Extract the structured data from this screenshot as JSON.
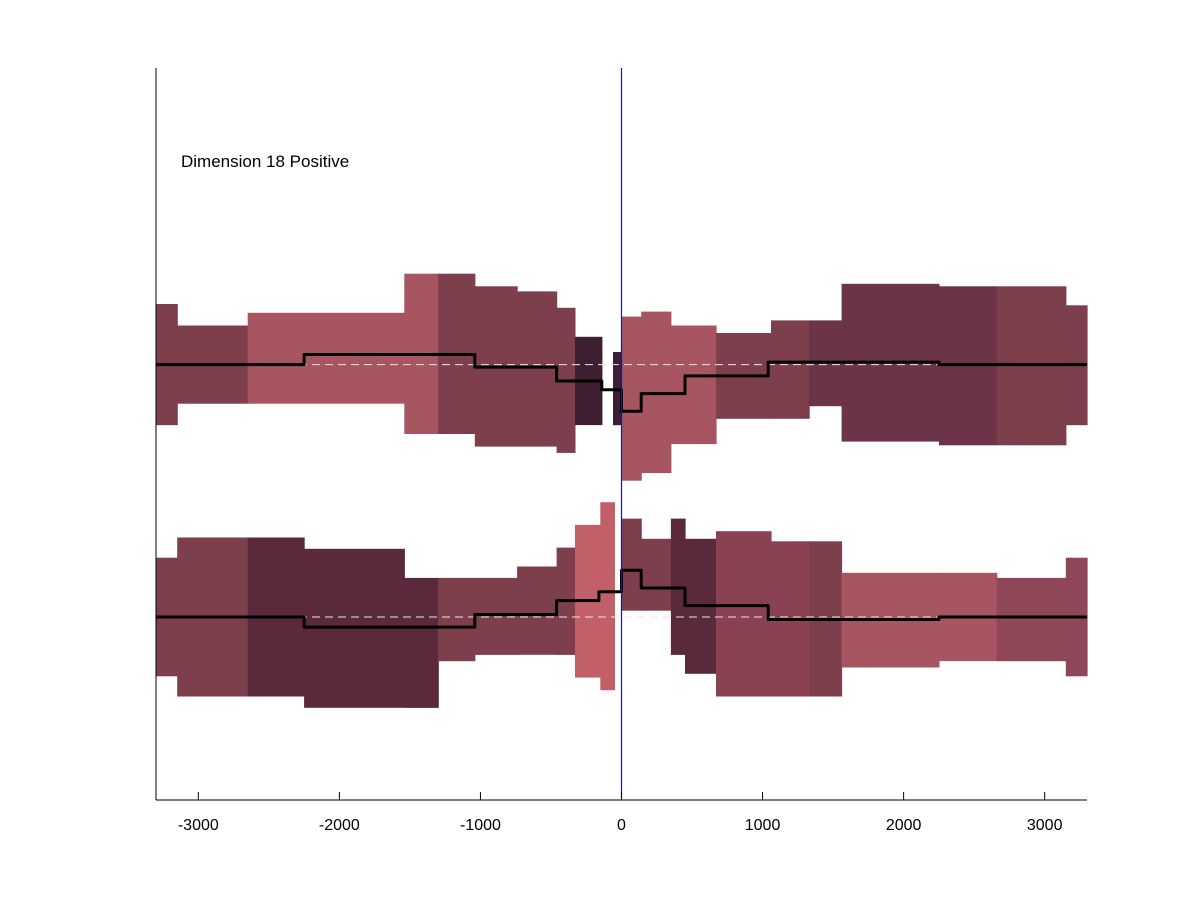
{
  "chart_data": {
    "type": "area",
    "title": "",
    "xlabel": "",
    "ylabel": "",
    "annotation": "Dimension 18 Positive",
    "xlim": [
      -3300,
      3300
    ],
    "ylim": [
      -3.45,
      2.35
    ],
    "xticks": [
      -3000,
      -2000,
      -1000,
      0,
      1000,
      2000,
      3000
    ],
    "x_ticks_shown": true,
    "y_ticks_shown": false,
    "grid": false,
    "vertical_marker": {
      "x": 0,
      "color": "#1a1a8c"
    },
    "track_baselines": [
      0,
      -2
    ],
    "baseline_style": {
      "color": "#e8e8e8",
      "dash": "dashed"
    },
    "tracks": [
      {
        "segments": [
          {
            "x0": -3300,
            "x1": -3150,
            "lo": -0.48,
            "hi": 0.48,
            "color": "#7e3f4d"
          },
          {
            "x0": -3150,
            "x1": -2650,
            "lo": -0.31,
            "hi": 0.31,
            "color": "#7e3f4d"
          },
          {
            "x0": -2650,
            "x1": -1540,
            "lo": -0.31,
            "hi": 0.41,
            "color": "#a75560"
          },
          {
            "x0": -1540,
            "x1": -1300,
            "lo": -0.55,
            "hi": 0.72,
            "color": "#a75560"
          },
          {
            "x0": -1300,
            "x1": -1040,
            "lo": -0.55,
            "hi": 0.72,
            "color": "#7e3f4d"
          },
          {
            "x0": -1040,
            "x1": -740,
            "lo": -0.65,
            "hi": 0.62,
            "color": "#7e3f4d"
          },
          {
            "x0": -740,
            "x1": -460,
            "lo": -0.65,
            "hi": 0.58,
            "color": "#7e3f4d"
          },
          {
            "x0": -460,
            "x1": -330,
            "lo": -0.7,
            "hi": 0.45,
            "color": "#7e3f4d"
          },
          {
            "x0": -330,
            "x1": -140,
            "lo": -0.48,
            "hi": 0.22,
            "color": "#3e1f31"
          },
          {
            "x0": -60,
            "x1": 0,
            "lo": -0.48,
            "hi": 0.1,
            "color": "#3e1f31"
          },
          {
            "x0": 0,
            "x1": 140,
            "lo": -0.92,
            "hi": 0.38,
            "color": "#a75560"
          },
          {
            "x0": 140,
            "x1": 350,
            "lo": -0.86,
            "hi": 0.42,
            "color": "#a75560"
          },
          {
            "x0": 350,
            "x1": 670,
            "lo": -0.63,
            "hi": 0.31,
            "color": "#a75560"
          },
          {
            "x0": 670,
            "x1": 1060,
            "lo": -0.43,
            "hi": 0.25,
            "color": "#7e3f4d"
          },
          {
            "x0": 1060,
            "x1": 1330,
            "lo": -0.43,
            "hi": 0.35,
            "color": "#7e3f4d"
          },
          {
            "x0": 1330,
            "x1": 1560,
            "lo": -0.33,
            "hi": 0.35,
            "color": "#6b3448"
          },
          {
            "x0": 1560,
            "x1": 2250,
            "lo": -0.61,
            "hi": 0.64,
            "color": "#6b3448"
          },
          {
            "x0": 2250,
            "x1": 2660,
            "lo": -0.64,
            "hi": 0.62,
            "color": "#6b3448"
          },
          {
            "x0": 2660,
            "x1": 3150,
            "lo": -0.64,
            "hi": 0.62,
            "color": "#7e3f4d"
          },
          {
            "x0": 3150,
            "x1": 3300,
            "lo": -0.48,
            "hi": 0.47,
            "color": "#7e3f4d"
          }
        ],
        "mean_line": [
          [
            -3300,
            0
          ],
          [
            -2250,
            0
          ],
          [
            -2250,
            0.08
          ],
          [
            -1040,
            0.08
          ],
          [
            -1040,
            -0.02
          ],
          [
            -460,
            -0.02
          ],
          [
            -460,
            -0.13
          ],
          [
            -140,
            -0.13
          ],
          [
            -140,
            -0.2
          ],
          [
            0,
            -0.2
          ],
          [
            0,
            -0.37
          ],
          [
            140,
            -0.37
          ],
          [
            140,
            -0.23
          ],
          [
            450,
            -0.23
          ],
          [
            450,
            -0.09
          ],
          [
            1040,
            -0.09
          ],
          [
            1040,
            0.02
          ],
          [
            2250,
            0.02
          ],
          [
            2250,
            0
          ],
          [
            3300,
            0
          ]
        ]
      },
      {
        "segments": [
          {
            "x0": -3300,
            "x1": -3150,
            "lo": -2.47,
            "hi": -1.53,
            "color": "#7e3f4d"
          },
          {
            "x0": -3150,
            "x1": -2650,
            "lo": -2.63,
            "hi": -1.37,
            "color": "#7e3f4d"
          },
          {
            "x0": -2650,
            "x1": -2250,
            "lo": -2.63,
            "hi": -1.37,
            "color": "#5a2a3c"
          },
          {
            "x0": -2250,
            "x1": -1540,
            "lo": -2.72,
            "hi": -1.46,
            "color": "#5a2a3c"
          },
          {
            "x0": -1540,
            "x1": -1300,
            "lo": -2.72,
            "hi": -1.69,
            "color": "#5a2a3c"
          },
          {
            "x0": -1300,
            "x1": -1040,
            "lo": -2.35,
            "hi": -1.69,
            "color": "#7e3f4d"
          },
          {
            "x0": -1040,
            "x1": -740,
            "lo": -2.3,
            "hi": -1.69,
            "color": "#7e3f4d"
          },
          {
            "x0": -740,
            "x1": -460,
            "lo": -2.3,
            "hi": -1.6,
            "color": "#7e3f4d"
          },
          {
            "x0": -460,
            "x1": -330,
            "lo": -2.3,
            "hi": -1.45,
            "color": "#7e3f4d"
          },
          {
            "x0": -330,
            "x1": -150,
            "lo": -2.48,
            "hi": -1.27,
            "color": "#c2606a"
          },
          {
            "x0": -150,
            "x1": -50,
            "lo": -2.58,
            "hi": -1.09,
            "color": "#c2606a"
          },
          {
            "x0": 0,
            "x1": 140,
            "lo": -1.95,
            "hi": -1.22,
            "color": "#7e3f4d"
          },
          {
            "x0": 140,
            "x1": 350,
            "lo": -1.95,
            "hi": -1.38,
            "color": "#7e3f4d"
          },
          {
            "x0": 350,
            "x1": 450,
            "lo": -2.3,
            "hi": -1.22,
            "color": "#5a2a3c"
          },
          {
            "x0": 450,
            "x1": 670,
            "lo": -2.45,
            "hi": -1.38,
            "color": "#5a2a3c"
          },
          {
            "x0": 670,
            "x1": 1060,
            "lo": -2.63,
            "hi": -1.32,
            "color": "#8a4253"
          },
          {
            "x0": 1060,
            "x1": 1330,
            "lo": -2.63,
            "hi": -1.4,
            "color": "#8a4253"
          },
          {
            "x0": 1330,
            "x1": 1560,
            "lo": -2.63,
            "hi": -1.4,
            "color": "#7e3f4d"
          },
          {
            "x0": 1560,
            "x1": 2250,
            "lo": -2.4,
            "hi": -1.65,
            "color": "#a75560"
          },
          {
            "x0": 2250,
            "x1": 2660,
            "lo": -2.35,
            "hi": -1.65,
            "color": "#a75560"
          },
          {
            "x0": 2660,
            "x1": 3150,
            "lo": -2.35,
            "hi": -1.69,
            "color": "#8f4757"
          },
          {
            "x0": 3150,
            "x1": 3300,
            "lo": -2.47,
            "hi": -1.53,
            "color": "#8f4757"
          }
        ],
        "mean_line": [
          [
            -3300,
            -2.0
          ],
          [
            -2250,
            -2.0
          ],
          [
            -2250,
            -2.08
          ],
          [
            -1040,
            -2.08
          ],
          [
            -1040,
            -1.98
          ],
          [
            -460,
            -1.98
          ],
          [
            -460,
            -1.87
          ],
          [
            -160,
            -1.87
          ],
          [
            -160,
            -1.8
          ],
          [
            0,
            -1.8
          ],
          [
            0,
            -1.63
          ],
          [
            140,
            -1.63
          ],
          [
            140,
            -1.77
          ],
          [
            450,
            -1.77
          ],
          [
            450,
            -1.91
          ],
          [
            1040,
            -1.91
          ],
          [
            1040,
            -2.02
          ],
          [
            2250,
            -2.02
          ],
          [
            2250,
            -2.0
          ],
          [
            3300,
            -2.0
          ]
        ]
      }
    ]
  }
}
